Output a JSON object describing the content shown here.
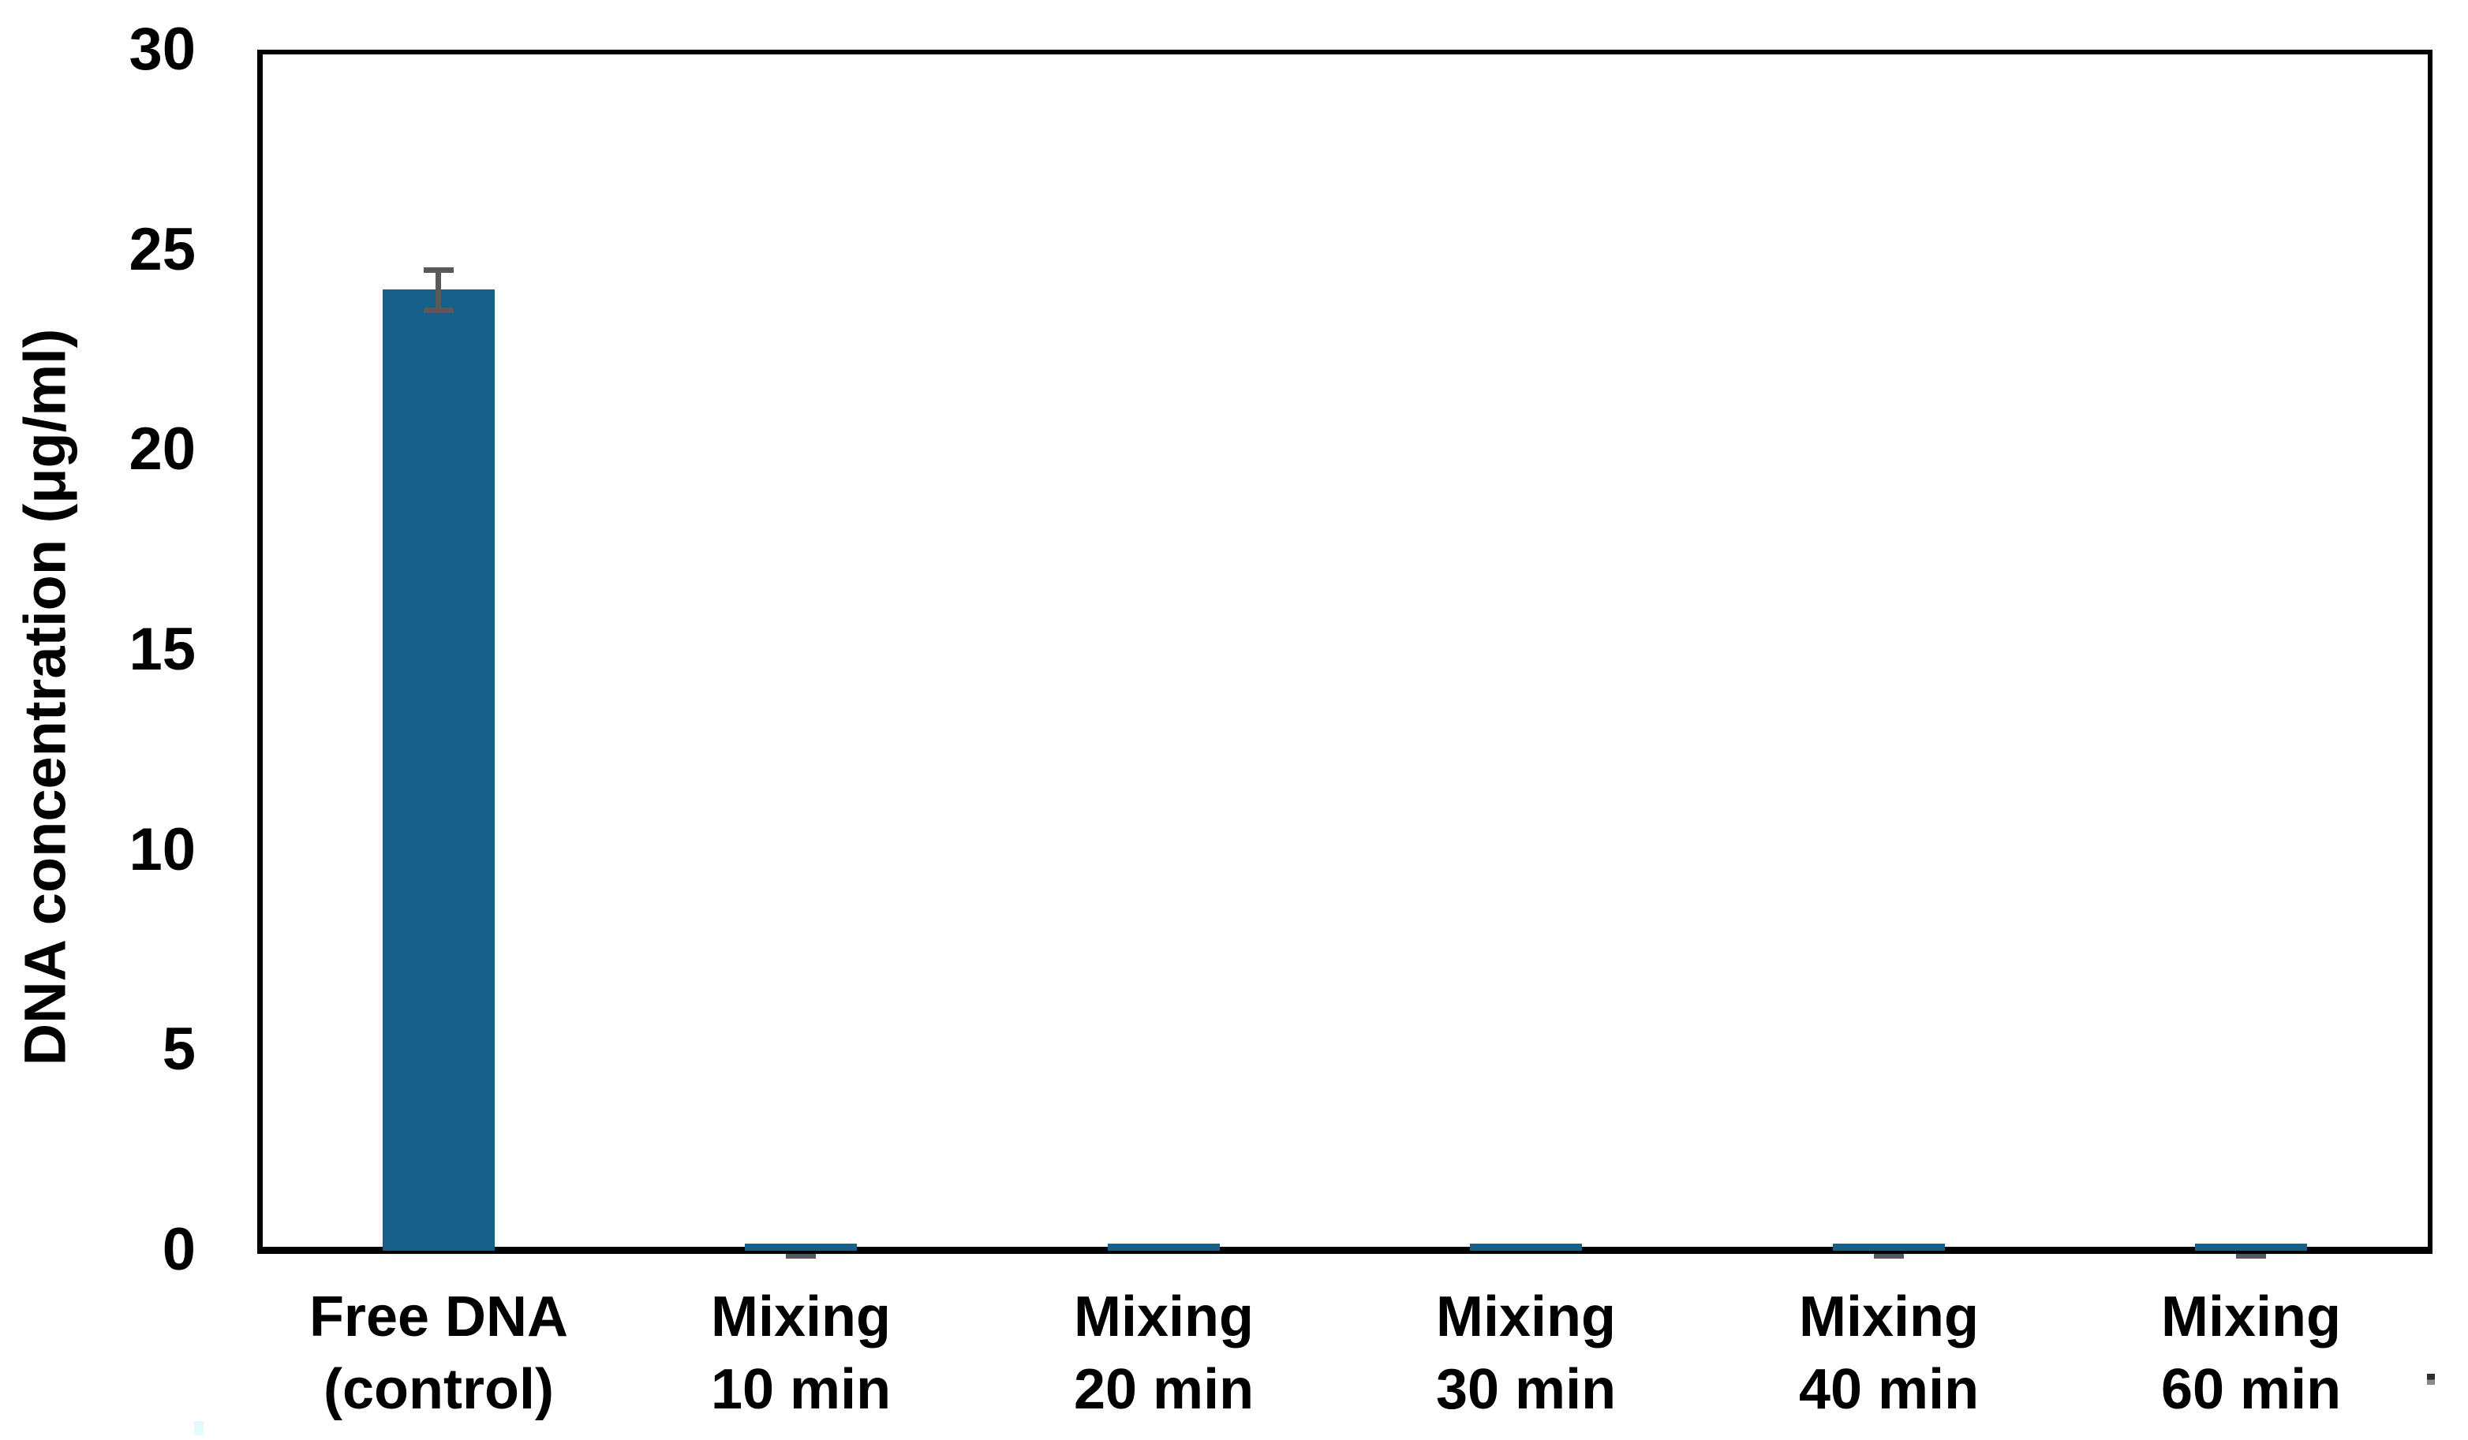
{
  "chart_data": {
    "type": "bar",
    "title": "",
    "xlabel": "",
    "ylabel": "DNA concentration (μg/ml)",
    "ylim": [
      0,
      30
    ],
    "yticks": [
      0,
      5,
      10,
      15,
      20,
      25,
      30
    ],
    "grid": false,
    "legend": "none",
    "categories": [
      "Free DNA\n(control)",
      "Mixing\n10 min",
      "Mixing\n20 min",
      "Mixing\n30 min",
      "Mixing\n40 min",
      "Mixing\n60 min"
    ],
    "values": [
      24.0,
      0.1,
      0.1,
      0.1,
      0.1,
      0.1
    ],
    "errors": [
      0.5,
      0.2,
      0,
      0,
      0.2,
      0.2
    ]
  },
  "colors": {
    "background": "#FFFFFF",
    "bar": "#166189",
    "error_bar": "#595959",
    "axis": "#000000",
    "text": "#000000"
  }
}
